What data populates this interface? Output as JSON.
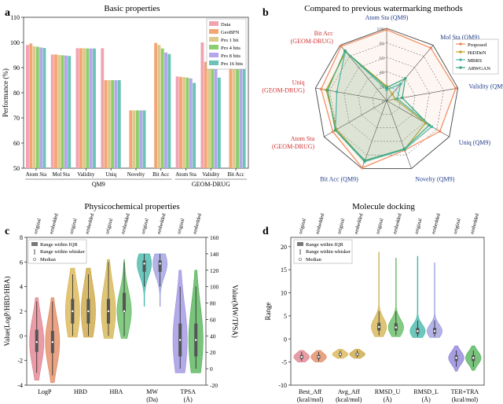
{
  "panels": {
    "a": {
      "letter": "a",
      "title": "Basic properties"
    },
    "b": {
      "letter": "b",
      "title": "Compared to previous watermarking methods"
    },
    "c": {
      "letter": "c",
      "title": "Physicochemical properties"
    },
    "d": {
      "letter": "d",
      "title": "Molecule docking"
    }
  },
  "chart_data": [
    {
      "id": "a",
      "type": "bar",
      "title": "Basic properties",
      "ylabel": "Performance (%)",
      "xlabel": "",
      "ylim": [
        50,
        110
      ],
      "yticks": [
        50,
        60,
        70,
        80,
        90,
        100,
        110
      ],
      "categories": [
        "Atom Sta",
        "Mol Sta",
        "Validity",
        "Uniq",
        "Novelty",
        "Bit Acc",
        "Atom Sta",
        "Validity",
        "Bit Acc"
      ],
      "groups": [
        {
          "label": "QM9",
          "count": 6
        },
        {
          "label": "GEOM-DRUG",
          "count": 3
        }
      ],
      "series": [
        {
          "name": "Data",
          "color": "#f2a3b1",
          "values": [
            99.0,
            95.2,
            97.7,
            97.7,
            null,
            null,
            86.5,
            100.0,
            null
          ]
        },
        {
          "name": "GeoBFN",
          "color": "#f3a673",
          "values": [
            99.6,
            95.2,
            97.7,
            85.0,
            73.0,
            99.8,
            86.3,
            92.3,
            100.0
          ]
        },
        {
          "name": "Pro 1 bit",
          "color": "#dfc98a",
          "values": [
            98.5,
            95.0,
            97.7,
            85.0,
            73.0,
            99.0,
            86.2,
            92.0,
            98.0
          ]
        },
        {
          "name": "Pro 4 bits",
          "color": "#8bcf6d",
          "values": [
            98.3,
            94.9,
            97.6,
            85.0,
            73.0,
            97.6,
            86.0,
            91.6,
            97.0
          ]
        },
        {
          "name": "Pro 8 bits",
          "color": "#b5a6ec",
          "values": [
            98.0,
            94.8,
            97.6,
            85.0,
            73.0,
            96.0,
            85.7,
            91.0,
            95.5
          ]
        },
        {
          "name": "Pro 16 bits",
          "color": "#6cc3b7",
          "values": [
            97.8,
            94.6,
            97.6,
            85.0,
            73.0,
            95.4,
            83.9,
            86.0,
            95.0
          ]
        }
      ]
    },
    {
      "id": "b",
      "type": "radar",
      "title": "Compared to previous watermarking methods",
      "rticks": [
        0,
        20,
        40,
        60,
        80,
        100
      ],
      "axes": [
        {
          "label": "Atom Sta (QM9)",
          "color": "#1f3c88"
        },
        {
          "label": "Mol Sta (QM9)",
          "color": "#1f3c88"
        },
        {
          "label": "Validity (QM9)",
          "color": "#1f3c88"
        },
        {
          "label": "Uniq (QM9)",
          "color": "#1f3c88"
        },
        {
          "label": "Novelty (QM9)",
          "color": "#1f3c88"
        },
        {
          "label": "Bit Acc (QM9)",
          "color": "#1f3c88"
        },
        {
          "label": "Atom Sta (GEOM-DRUG)",
          "color": "#d03030"
        },
        {
          "label": "Uniq (GEOM-DRUG)",
          "color": "#d03030"
        },
        {
          "label": "Bit Acc (GEOM-DRUG)",
          "color": "#d03030"
        }
      ],
      "series": [
        {
          "name": "Proposed",
          "color": "#f08a5d",
          "marker": "square",
          "values": [
            98,
            95,
            97,
            85,
            73,
            99,
            86,
            92,
            98
          ]
        },
        {
          "name": "HiDDeN",
          "color": "#c9a227",
          "marker": "circle",
          "values": [
            20,
            12,
            12,
            62,
            72,
            89,
            80,
            85,
            88
          ]
        },
        {
          "name": "MBRS",
          "color": "#4cb8a9",
          "marker": "triangle",
          "values": [
            15,
            30,
            15,
            72,
            72,
            90,
            82,
            70,
            89
          ]
        },
        {
          "name": "ARWGAN",
          "color": "#3aa77a",
          "marker": "triangle-down",
          "values": [
            18,
            40,
            22,
            68,
            71,
            88,
            82,
            83,
            90
          ]
        }
      ]
    },
    {
      "id": "c",
      "type": "violin",
      "title": "Physicochemical properties",
      "ylabel_left": "Value(LogP/HBD/HBA)",
      "ylabel_right": "Value(MW/TPSA)",
      "ylim_left": [
        -4,
        8
      ],
      "yticks_left": [
        -4,
        -2,
        0,
        2,
        4,
        6,
        8
      ],
      "ylim_right": [
        -20,
        160
      ],
      "yticks_right": [
        -20,
        0,
        20,
        40,
        60,
        80,
        100,
        120,
        140,
        160
      ],
      "categories": [
        "LogP",
        "HBD",
        "HBA",
        "MW",
        "TPSA"
      ],
      "units": [
        "",
        "",
        "",
        "(Da)",
        "(Å)"
      ],
      "variants": [
        "original",
        "embedded"
      ],
      "legend": [
        "Range within IQR",
        "Range within whisker",
        "Median"
      ],
      "items": [
        {
          "category": "LogP",
          "variant": "original",
          "axis": "left",
          "color": "#e07b8a",
          "min": -3.6,
          "max": 3.1,
          "q1": -1.3,
          "q3": 0.5,
          "median": -0.5,
          "wlo": -3.0,
          "whi": 2.8
        },
        {
          "category": "LogP",
          "variant": "embedded",
          "axis": "left",
          "color": "#e0855c",
          "min": -3.8,
          "max": 3.1,
          "q1": -1.4,
          "q3": 0.4,
          "median": -0.5,
          "wlo": -3.2,
          "whi": 2.8
        },
        {
          "category": "HBD",
          "variant": "original",
          "axis": "left",
          "color": "#d8b24a",
          "min": -0.1,
          "max": 5.5,
          "q1": 1.0,
          "q3": 3.0,
          "median": 2.0,
          "wlo": 0.0,
          "whi": 5.0
        },
        {
          "category": "HBD",
          "variant": "embedded",
          "axis": "left",
          "color": "#c9a23a",
          "min": -0.1,
          "max": 5.5,
          "q1": 1.0,
          "q3": 3.0,
          "median": 2.0,
          "wlo": 0.0,
          "whi": 5.0
        },
        {
          "category": "HBA",
          "variant": "original",
          "axis": "left",
          "color": "#d2b04a",
          "min": -0.2,
          "max": 6.2,
          "q1": 1.0,
          "q3": 3.0,
          "median": 2.0,
          "wlo": 0.0,
          "whi": 6.0
        },
        {
          "category": "HBA",
          "variant": "embedded",
          "axis": "left",
          "color": "#5cb85c",
          "min": -0.2,
          "max": 6.2,
          "q1": 2.0,
          "q3": 3.5,
          "median": 2.0,
          "wlo": 0.0,
          "whi": 6.0
        },
        {
          "category": "MW",
          "variant": "original",
          "axis": "right",
          "color": "#3cb4a6",
          "min": 76,
          "max": 140,
          "q1": 118,
          "q3": 132,
          "median": 128,
          "wlo": 100,
          "whi": 140
        },
        {
          "category": "MW",
          "variant": "embedded",
          "axis": "right",
          "color": "#9a9ae0",
          "min": 76,
          "max": 140,
          "q1": 118,
          "q3": 132,
          "median": 128,
          "wlo": 100,
          "whi": 140
        },
        {
          "category": "TPSA",
          "variant": "original",
          "axis": "right",
          "color": "#9a8ee0",
          "min": -5,
          "max": 120,
          "q1": 15,
          "q3": 55,
          "median": 35,
          "wlo": 0,
          "whi": 100
        },
        {
          "category": "TPSA",
          "variant": "embedded",
          "axis": "right",
          "color": "#4caf50",
          "min": -5,
          "max": 120,
          "q1": 15,
          "q3": 55,
          "median": 35,
          "wlo": 0,
          "whi": 100
        }
      ]
    },
    {
      "id": "d",
      "type": "violin",
      "title": "Molecule docking",
      "ylabel": "Range",
      "ylim": [
        -10,
        22
      ],
      "yticks": [
        -10,
        -5,
        0,
        5,
        10,
        15,
        20
      ],
      "categories": [
        "Best_Aff",
        "Avg_Aff",
        "RMSD_U",
        "RMSD_L",
        "TER+TRA"
      ],
      "units": [
        "(kcal/mol)",
        "(kcal/mol)",
        "(Å)",
        "(Å)",
        "(kcal/mol)"
      ],
      "variants": [
        "original",
        "embedded"
      ],
      "legend": [
        "Range within IQR",
        "Range within whisker",
        "Median"
      ],
      "items": [
        {
          "category": "Best_Aff",
          "variant": "original",
          "color": "#e07b8a",
          "min": -5.0,
          "max": -2.5,
          "q1": -4.3,
          "q3": -3.5,
          "median": -3.9,
          "wlo": -4.8,
          "whi": -2.8
        },
        {
          "category": "Best_Aff",
          "variant": "embedded",
          "color": "#e0855c",
          "min": -5.0,
          "max": -2.5,
          "q1": -4.3,
          "q3": -3.5,
          "median": -3.9,
          "wlo": -4.8,
          "whi": -2.8
        },
        {
          "category": "Avg_Aff",
          "variant": "original",
          "color": "#d8b24a",
          "min": -4.2,
          "max": -2.2,
          "q1": -3.6,
          "q3": -3.0,
          "median": -3.3,
          "wlo": -4.0,
          "whi": -2.5
        },
        {
          "category": "Avg_Aff",
          "variant": "embedded",
          "color": "#c9a23a",
          "min": -4.2,
          "max": -2.2,
          "q1": -3.6,
          "q3": -3.0,
          "median": -3.3,
          "wlo": -4.0,
          "whi": -2.5
        },
        {
          "category": "RMSD_U",
          "variant": "original",
          "color": "#d2b04a",
          "min": 0.5,
          "max": 18.8,
          "q1": 1.8,
          "q3": 3.5,
          "median": 2.6,
          "wlo": 0.8,
          "whi": 6.0
        },
        {
          "category": "RMSD_U",
          "variant": "embedded",
          "color": "#5cb85c",
          "min": 0.5,
          "max": 17.5,
          "q1": 1.8,
          "q3": 3.4,
          "median": 2.5,
          "wlo": 0.8,
          "whi": 6.0
        },
        {
          "category": "RMSD_L",
          "variant": "original",
          "color": "#3cb4a6",
          "min": 0.3,
          "max": 17.9,
          "q1": 1.1,
          "q3": 2.4,
          "median": 1.7,
          "wlo": 0.5,
          "whi": 4.0
        },
        {
          "category": "RMSD_L",
          "variant": "embedded",
          "color": "#9a9ae0",
          "min": 0.3,
          "max": 16.5,
          "q1": 1.1,
          "q3": 2.4,
          "median": 1.7,
          "wlo": 0.5,
          "whi": 4.0
        },
        {
          "category": "TER+TRA",
          "variant": "original",
          "color": "#8a7ed8",
          "min": -7.0,
          "max": -1.5,
          "q1": -4.8,
          "q3": -3.5,
          "median": -4.1,
          "wlo": -6.0,
          "whi": -2.5
        },
        {
          "category": "TER+TRA",
          "variant": "embedded",
          "color": "#4caf50",
          "min": -6.8,
          "max": -1.5,
          "q1": -4.8,
          "q3": -3.5,
          "median": -4.1,
          "wlo": -6.0,
          "whi": -2.5
        }
      ]
    }
  ]
}
